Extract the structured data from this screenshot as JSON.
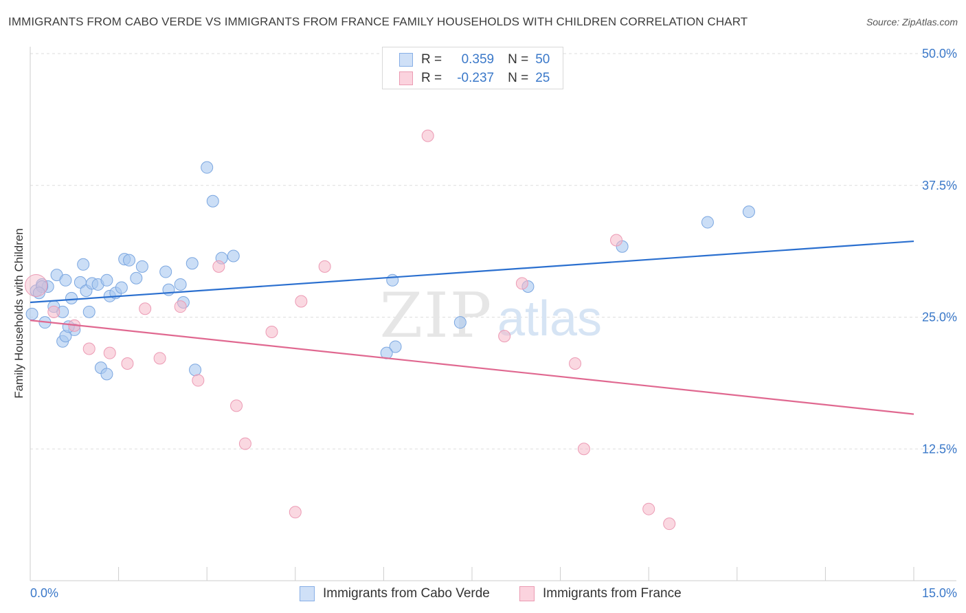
{
  "title": "IMMIGRANTS FROM CABO VERDE VS IMMIGRANTS FROM FRANCE FAMILY HOUSEHOLDS WITH CHILDREN CORRELATION CHART",
  "source": "Source: ZipAtlas.com",
  "watermark": {
    "zip": "ZIP",
    "atlas": "atlas"
  },
  "legend": {
    "r_label": "R =",
    "n_label": "N =",
    "rows": [
      {
        "r": "0.359",
        "n": "50",
        "color": "#a8c8f0"
      },
      {
        "r": "-0.237",
        "n": "25",
        "color": "#f5b8c8"
      }
    ]
  },
  "bottom_legend": [
    {
      "label": "Immigrants from Cabo Verde",
      "color": "#a8c8f0"
    },
    {
      "label": "Immigrants from France",
      "color": "#f5b8c8"
    }
  ],
  "colors": {
    "blue_fill": "#a8c8f0",
    "blue_line": "#2a6fcf",
    "pink_fill": "#f5b8c8",
    "pink_line": "#e06890",
    "tick_text": "#3a78c9",
    "grid": "#dddddd"
  },
  "chart_data": {
    "type": "scatter",
    "title": "IMMIGRANTS FROM CABO VERDE VS IMMIGRANTS FROM FRANCE FAMILY HOUSEHOLDS WITH CHILDREN CORRELATION CHART",
    "xlabel": "",
    "ylabel": "Family Households with Children",
    "xlim": [
      0,
      15
    ],
    "ylim": [
      0,
      50
    ],
    "x_tick_labels": [
      "0.0%",
      "15.0%"
    ],
    "y_ticks": [
      12.5,
      25.0,
      37.5,
      50.0
    ],
    "y_tick_labels": [
      "12.5%",
      "25.0%",
      "37.5%",
      "50.0%"
    ],
    "grid": true,
    "legend_position": "top-center",
    "series": [
      {
        "name": "Immigrants from Cabo Verde",
        "R": 0.359,
        "N": 50,
        "trend": {
          "x": [
            0,
            15
          ],
          "y": [
            26.4,
            32.2
          ]
        },
        "points": [
          [
            0.03,
            25.3
          ],
          [
            0.1,
            27.5
          ],
          [
            0.2,
            28.1
          ],
          [
            0.25,
            24.5
          ],
          [
            0.3,
            27.9
          ],
          [
            0.45,
            29.0
          ],
          [
            0.4,
            26.0
          ],
          [
            0.55,
            25.5
          ],
          [
            0.6,
            28.5
          ],
          [
            0.7,
            26.8
          ],
          [
            0.75,
            23.8
          ],
          [
            0.85,
            28.3
          ],
          [
            0.9,
            30.0
          ],
          [
            0.95,
            27.5
          ],
          [
            1.05,
            28.2
          ],
          [
            1.15,
            28.1
          ],
          [
            1.3,
            28.5
          ],
          [
            1.35,
            27.0
          ],
          [
            1.45,
            27.3
          ],
          [
            1.55,
            27.8
          ],
          [
            1.6,
            30.5
          ],
          [
            1.68,
            30.4
          ],
          [
            1.8,
            28.7
          ],
          [
            1.9,
            29.8
          ],
          [
            2.3,
            29.3
          ],
          [
            2.35,
            27.6
          ],
          [
            2.55,
            28.1
          ],
          [
            2.6,
            26.4
          ],
          [
            2.75,
            30.1
          ],
          [
            2.8,
            20.0
          ],
          [
            3.0,
            39.2
          ],
          [
            3.1,
            36.0
          ],
          [
            3.25,
            30.6
          ],
          [
            3.45,
            30.8
          ],
          [
            6.15,
            28.5
          ],
          [
            6.2,
            22.2
          ],
          [
            7.3,
            24.5
          ],
          [
            8.45,
            27.9
          ],
          [
            10.05,
            31.7
          ],
          [
            11.5,
            34.0
          ],
          [
            12.2,
            35.0
          ],
          [
            6.05,
            21.6
          ],
          [
            1.2,
            20.2
          ],
          [
            1.3,
            19.6
          ],
          [
            0.55,
            22.7
          ],
          [
            0.6,
            23.2
          ],
          [
            0.65,
            24.1
          ],
          [
            0.2,
            27.9
          ],
          [
            0.15,
            27.3
          ],
          [
            1.0,
            25.5
          ]
        ]
      },
      {
        "name": "Immigrants from France",
        "R": -0.237,
        "N": 25,
        "trend": {
          "x": [
            0,
            15
          ],
          "y": [
            24.7,
            15.8
          ]
        },
        "points": [
          [
            0.1,
            28.0
          ],
          [
            0.4,
            25.5
          ],
          [
            0.75,
            24.2
          ],
          [
            1.0,
            22.0
          ],
          [
            1.35,
            21.6
          ],
          [
            1.65,
            20.6
          ],
          [
            1.95,
            25.8
          ],
          [
            2.2,
            21.1
          ],
          [
            2.55,
            26.0
          ],
          [
            2.85,
            19.0
          ],
          [
            3.2,
            29.8
          ],
          [
            3.5,
            16.6
          ],
          [
            3.65,
            13.0
          ],
          [
            4.1,
            23.6
          ],
          [
            4.5,
            6.5
          ],
          [
            4.6,
            26.5
          ],
          [
            5.0,
            29.8
          ],
          [
            6.75,
            42.2
          ],
          [
            8.05,
            23.2
          ],
          [
            8.35,
            28.2
          ],
          [
            9.25,
            20.6
          ],
          [
            9.4,
            12.5
          ],
          [
            9.95,
            32.3
          ],
          [
            10.5,
            6.8
          ],
          [
            10.85,
            5.4
          ]
        ]
      }
    ]
  }
}
